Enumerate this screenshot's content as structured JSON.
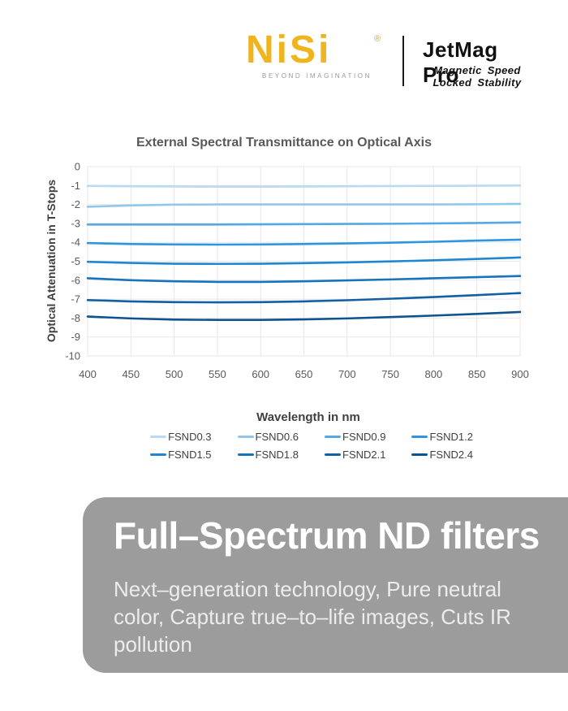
{
  "header": {
    "brand_name": "NiSi",
    "registered_mark": "®",
    "brand_tagline": "BEYOND IMAGINATION",
    "brand_color": "#f0b51e",
    "product_name": "JetMag Pro",
    "product_subtitle_line1": "Magnetic Speed",
    "product_subtitle_line2": "Locked Stability"
  },
  "chart_data": {
    "type": "line",
    "title": "External Spectral Transmittance on Optical Axis",
    "xlabel": "Wavelength in nm",
    "ylabel": "Optical Attenuation in T-Stops",
    "x": [
      400,
      450,
      500,
      550,
      600,
      650,
      700,
      750,
      800,
      850,
      900
    ],
    "xlim": [
      400,
      900
    ],
    "ylim": [
      -10,
      0
    ],
    "yticks": [
      0,
      -1,
      -2,
      -3,
      -4,
      -5,
      -6,
      -7,
      -8,
      -9,
      -10
    ],
    "grid": true,
    "grid_color": "#e7e7e7",
    "tick_color": "#595959",
    "legend_position": "bottom",
    "series": [
      {
        "name": "FSND0.3",
        "color": "#b9daf2",
        "values": [
          -1.02,
          -1.04,
          -1.05,
          -1.06,
          -1.06,
          -1.05,
          -1.04,
          -1.03,
          -1.02,
          -1.01,
          -1.0
        ]
      },
      {
        "name": "FSND0.6",
        "color": "#92c7ec",
        "values": [
          -2.12,
          -2.05,
          -2.01,
          -2.0,
          -2.0,
          -2.0,
          -2.0,
          -2.0,
          -2.0,
          -1.99,
          -1.97
        ]
      },
      {
        "name": "FSND0.9",
        "color": "#54a8e4",
        "values": [
          -3.06,
          -3.06,
          -3.06,
          -3.06,
          -3.05,
          -3.04,
          -3.03,
          -3.02,
          -3.0,
          -2.98,
          -2.95
        ]
      },
      {
        "name": "FSND1.2",
        "color": "#2e96de",
        "values": [
          -4.04,
          -4.09,
          -4.11,
          -4.12,
          -4.11,
          -4.09,
          -4.06,
          -4.02,
          -3.97,
          -3.91,
          -3.86
        ]
      },
      {
        "name": "FSND1.5",
        "color": "#1f87d2",
        "values": [
          -5.03,
          -5.09,
          -5.13,
          -5.14,
          -5.13,
          -5.1,
          -5.06,
          -5.01,
          -4.95,
          -4.88,
          -4.8
        ]
      },
      {
        "name": "FSND1.8",
        "color": "#1873bd",
        "values": [
          -5.9,
          -6.0,
          -6.06,
          -6.09,
          -6.09,
          -6.06,
          -6.01,
          -5.96,
          -5.9,
          -5.84,
          -5.78
        ]
      },
      {
        "name": "FSND2.1",
        "color": "#135fa5",
        "values": [
          -7.05,
          -7.12,
          -7.16,
          -7.17,
          -7.16,
          -7.12,
          -7.06,
          -6.98,
          -6.89,
          -6.79,
          -6.68
        ]
      },
      {
        "name": "FSND2.4",
        "color": "#0e538f",
        "values": [
          -7.92,
          -8.02,
          -8.08,
          -8.1,
          -8.1,
          -8.07,
          -8.02,
          -7.95,
          -7.87,
          -7.78,
          -7.68
        ]
      }
    ]
  },
  "banner": {
    "title": "Full–Spectrum ND filters",
    "description": "Next–generation technology, Pure neutral color, Capture true–to–life images, Cuts IR pollution",
    "bg_color": "#9c9c9c"
  }
}
